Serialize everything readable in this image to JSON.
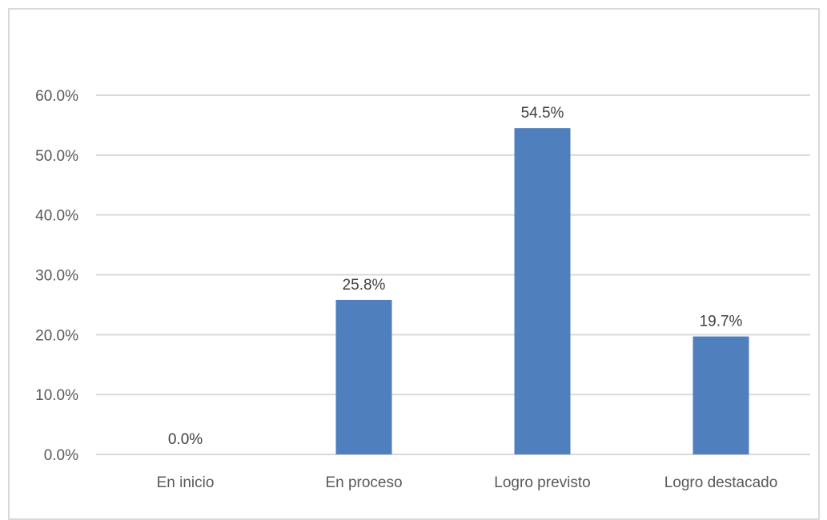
{
  "chart_data": {
    "type": "bar",
    "categories": [
      "En inicio",
      "En proceso",
      "Logro previsto",
      "Logro destacado"
    ],
    "values": [
      0.0,
      25.8,
      54.5,
      19.7
    ],
    "data_labels": [
      "0.0%",
      "25.8%",
      "54.5%",
      "19.7%"
    ],
    "y_ticks": [
      "0.0%",
      "10.0%",
      "20.0%",
      "30.0%",
      "40.0%",
      "50.0%",
      "60.0%"
    ],
    "ylim": [
      0,
      60
    ],
    "grid": true,
    "bar_color": "#4f7fbd",
    "grid_color": "#d9d9d9"
  }
}
